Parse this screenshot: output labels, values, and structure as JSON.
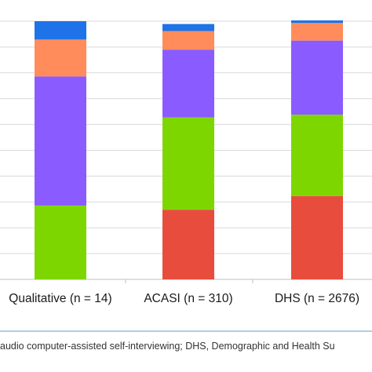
{
  "chart_data": {
    "type": "bar",
    "stacked": true,
    "categories": [
      "Qualitative (n = 14)",
      "ACASI (n = 310)",
      "DHS (n = 2676)"
    ],
    "ylim": [
      0,
      100
    ],
    "grid": true,
    "legend": "none",
    "series": [
      {
        "color": "#e84c3d",
        "values": [
          0,
          27,
          32.3
        ]
      },
      {
        "color": "#7ed600",
        "values": [
          28.6,
          35.7,
          31.5
        ]
      },
      {
        "color": "#8a5cff",
        "values": [
          50,
          26.3,
          28.7
        ]
      },
      {
        "color": "#ff8c5a",
        "values": [
          14.3,
          7.2,
          6.8
        ]
      },
      {
        "color": "#1e73e8",
        "values": [
          7.1,
          2.7,
          1.0
        ]
      }
    ]
  },
  "caption": "audio computer-assisted self-interviewing; DHS, Demographic and Health Su"
}
